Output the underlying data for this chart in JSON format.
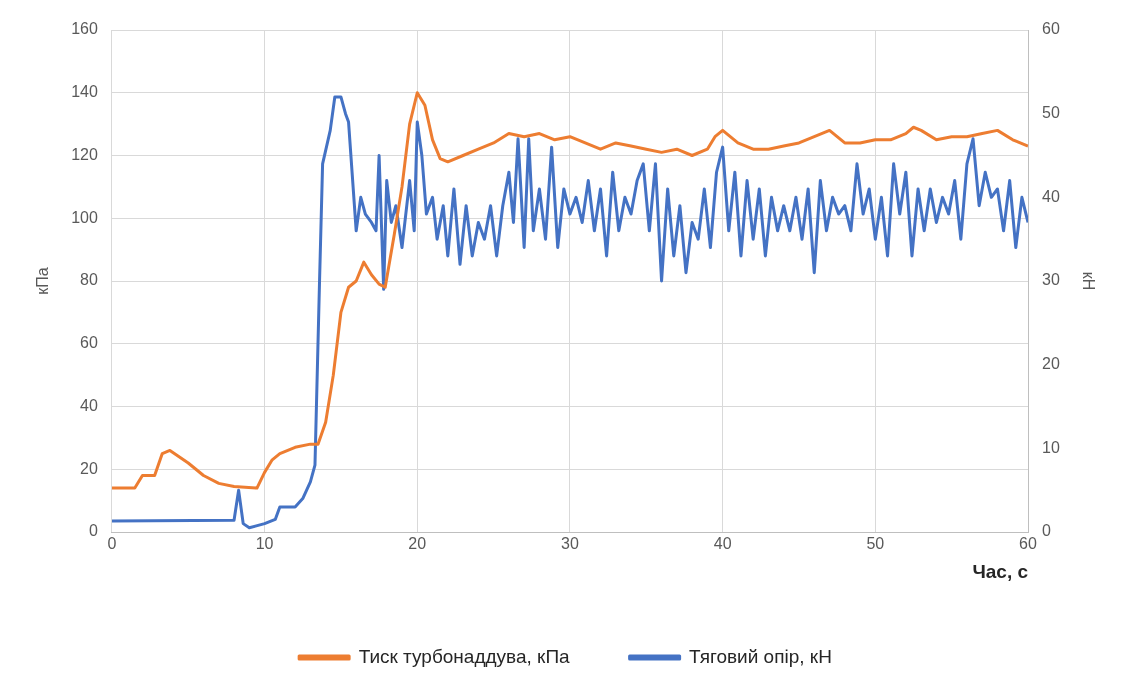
{
  "chart_data": {
    "type": "line",
    "xlabel": "Час, с",
    "ylabel": "кПа",
    "y2label": "кН",
    "xlim": [
      0,
      60
    ],
    "xticks": [
      0,
      10,
      20,
      30,
      40,
      50,
      60
    ],
    "ylim": [
      0,
      160
    ],
    "yticks": [
      0,
      20,
      40,
      60,
      80,
      100,
      120,
      140,
      160
    ],
    "y2lim": [
      0,
      60
    ],
    "y2ticks": [
      0,
      10,
      20,
      30,
      40,
      50,
      60
    ],
    "grid": true,
    "legend": "bottom",
    "marker": "none",
    "line_style": "solid",
    "series": [
      {
        "name": "Тиск турбонаддува, кПа",
        "color": "#ed7d31",
        "x": [
          0,
          1.5,
          2,
          2.8,
          3.3,
          3.8,
          5,
          6,
          7,
          8,
          9.5,
          10,
          10.5,
          11,
          12,
          13,
          13.5,
          14,
          14.5,
          15,
          15.5,
          16,
          16.5,
          17,
          17.5,
          17.9,
          18.5,
          19,
          19.5,
          20,
          20.5,
          21,
          21.5,
          22,
          23,
          24,
          25,
          26,
          27,
          28,
          29,
          30,
          31,
          32,
          33,
          34,
          35,
          36,
          37,
          38,
          39,
          39.5,
          40,
          41,
          42,
          43,
          44,
          45,
          46,
          47,
          48,
          49,
          50,
          51,
          52,
          52.5,
          53,
          54,
          55,
          56,
          57,
          58,
          59,
          60
        ],
        "values": [
          14,
          14,
          18,
          18,
          25,
          26,
          22,
          18,
          15.5,
          14.5,
          14,
          19,
          23,
          25,
          27,
          28,
          28,
          35,
          50,
          70,
          78,
          80,
          86,
          82,
          79,
          78,
          95,
          110,
          130,
          140,
          136,
          125,
          119,
          118,
          120,
          122,
          124,
          127,
          126,
          127,
          125,
          126,
          124,
          122,
          124,
          123,
          122,
          121,
          122,
          120,
          122,
          126,
          128,
          124,
          122,
          122,
          123,
          124,
          126,
          128,
          124,
          124,
          125,
          125,
          127,
          129,
          128,
          125,
          126,
          126,
          127,
          128,
          125,
          123
        ]
      },
      {
        "name": "Тяговий опір, кН",
        "color": "#4472c4",
        "axis": "y2",
        "x": [
          0,
          8,
          8.3,
          8.6,
          9,
          10,
          10.7,
          11,
          12,
          12.5,
          13,
          13.3,
          13.6,
          13.8,
          14.3,
          14.6,
          15,
          15.3,
          15.5,
          16,
          16.3,
          16.6,
          17,
          17.3,
          17.5,
          17.8,
          18,
          18.3,
          18.6,
          19,
          19.5,
          19.8,
          20,
          20.3,
          20.6,
          21,
          21.3,
          21.7,
          22,
          22.4,
          22.8,
          23.2,
          23.6,
          24,
          24.4,
          24.8,
          25.2,
          25.6,
          26,
          26.3,
          26.6,
          27,
          27.3,
          27.6,
          28,
          28.4,
          28.8,
          29.2,
          29.6,
          30,
          30.4,
          30.8,
          31.2,
          31.6,
          32,
          32.4,
          32.8,
          33.2,
          33.6,
          34,
          34.4,
          34.8,
          35.2,
          35.6,
          36,
          36.4,
          36.8,
          37.2,
          37.6,
          38,
          38.4,
          38.8,
          39.2,
          39.6,
          40,
          40.4,
          40.8,
          41.2,
          41.6,
          42,
          42.4,
          42.8,
          43.2,
          43.6,
          44,
          44.4,
          44.8,
          45.2,
          45.6,
          46,
          46.4,
          46.8,
          47.2,
          47.6,
          48,
          48.4,
          48.8,
          49.2,
          49.6,
          50,
          50.4,
          50.8,
          51.2,
          51.6,
          52,
          52.4,
          52.8,
          53.2,
          53.6,
          54,
          54.4,
          54.8,
          55.2,
          55.6,
          56,
          56.4,
          56.8,
          57.2,
          57.6,
          58,
          58.4,
          58.8,
          59.2,
          59.6,
          60
        ],
        "values": [
          1.3,
          1.4,
          5,
          1,
          0.5,
          1,
          1.5,
          3,
          3,
          4,
          6,
          8,
          30,
          44,
          48,
          52,
          52,
          50,
          49,
          36,
          40,
          38,
          37,
          36,
          45,
          29,
          42,
          37,
          39,
          34,
          42,
          36,
          49,
          45,
          38,
          40,
          35,
          39,
          33,
          41,
          32,
          39,
          33,
          37,
          35,
          39,
          33,
          39,
          43,
          37,
          47,
          34,
          47,
          36,
          41,
          35,
          46,
          34,
          41,
          38,
          40,
          37,
          42,
          36,
          41,
          33,
          43,
          36,
          40,
          38,
          42,
          44,
          36,
          44,
          30,
          41,
          33,
          39,
          31,
          37,
          35,
          41,
          34,
          43,
          46,
          36,
          43,
          33,
          42,
          35,
          41,
          33,
          40,
          36,
          39,
          36,
          40,
          35,
          41,
          31,
          42,
          36,
          40,
          38,
          39,
          36,
          44,
          38,
          41,
          35,
          40,
          33,
          44,
          38,
          43,
          33,
          41,
          36,
          41,
          37,
          40,
          38,
          42,
          35,
          44,
          47,
          39,
          43,
          40,
          41,
          36,
          42,
          34,
          40,
          37
        ]
      }
    ]
  }
}
